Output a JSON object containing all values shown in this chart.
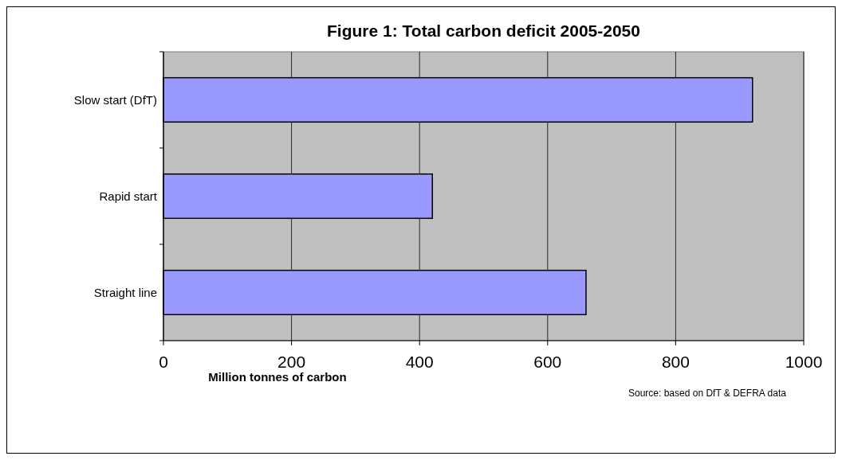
{
  "chart_data": {
    "type": "bar",
    "orientation": "horizontal",
    "title": "Figure 1: Total carbon deficit 2005-2050",
    "xlabel": "Million tonnes of carbon",
    "categories": [
      "Slow start (DfT)",
      "Rapid start",
      "Straight line"
    ],
    "values": [
      920,
      420,
      660
    ],
    "color": "#9999ff",
    "xlim": [
      0,
      1000
    ],
    "xticks": [
      0,
      200,
      400,
      600,
      800,
      1000
    ],
    "grid": "x",
    "annotations": [
      "Source: based on DfT & DEFRA data"
    ]
  }
}
